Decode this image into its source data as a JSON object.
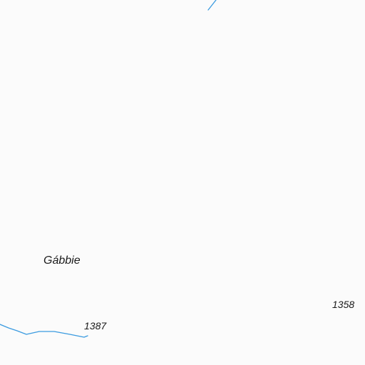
{
  "map": {
    "place_name": "Gábbie",
    "elevations": [
      "1387",
      "1358"
    ],
    "colors": {
      "background": "#fbfbfb",
      "water": "#3b9be0",
      "text": "#1a1a1a"
    }
  }
}
